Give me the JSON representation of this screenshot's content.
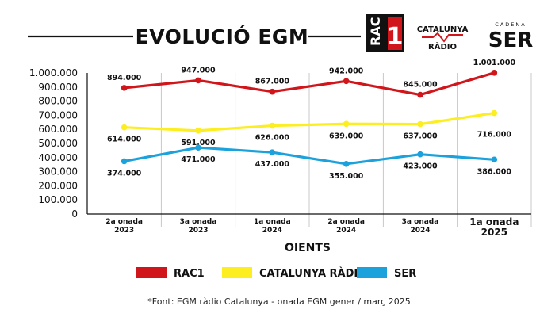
{
  "title": "EVOLUCIÓ EGM",
  "logos": {
    "rac1": "RAC1",
    "catalunya_radio_line1": "CATALUNYA",
    "catalunya_radio_line2": "RÀDIO",
    "ser_small": "CADENA",
    "ser_big": "SER"
  },
  "chart_data": {
    "type": "line",
    "categories": [
      [
        "2a onada",
        "2023"
      ],
      [
        "3a onada",
        "2023"
      ],
      [
        "1a onada",
        "2024"
      ],
      [
        "2a onada",
        "2024"
      ],
      [
        "3a onada",
        "2024"
      ],
      [
        "1a onada",
        "2025"
      ]
    ],
    "xlabel": "OIENTS",
    "ylim": [
      0,
      1000000
    ],
    "yticks": [
      "0",
      "100.000",
      "200.000",
      "300.000",
      "400.000",
      "500.000",
      "600.000",
      "700.000",
      "800.000",
      "900.000",
      "1.000.000"
    ],
    "grid": "vertical",
    "legend": "bottom",
    "series": [
      {
        "name": "RAC1",
        "color": "#d0161b",
        "values": [
          894000,
          947000,
          867000,
          942000,
          845000,
          1001000
        ],
        "labels": [
          "894.000",
          "947.000",
          "867.000",
          "942.000",
          "845.000",
          "1.001.000"
        ]
      },
      {
        "name": "CATALUNYA RÀDIO",
        "color": "#fcee21",
        "values": [
          614000,
          591000,
          626000,
          639000,
          637000,
          716000
        ],
        "labels": [
          "614.000",
          "591.000",
          "626.000",
          "639.000",
          "637.000",
          "716.000"
        ]
      },
      {
        "name": "SER",
        "color": "#1ba1db",
        "values": [
          374000,
          471000,
          437000,
          355000,
          423000,
          386000
        ],
        "labels": [
          "374.000",
          "471.000",
          "437.000",
          "355.000",
          "423.000",
          "386.000"
        ]
      }
    ]
  },
  "source": "*Font: EGM ràdio Catalunya -   onada EGM gener / març 2025"
}
